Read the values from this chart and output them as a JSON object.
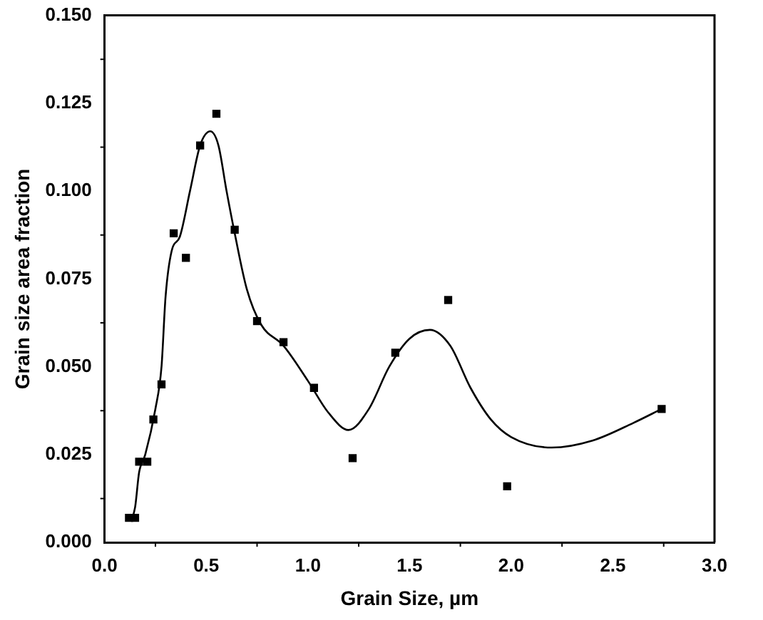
{
  "chart_data": {
    "type": "scatter",
    "xlabel": "Grain Size, µm",
    "ylabel": "Grain size area fraction",
    "xlim": [
      0,
      3
    ],
    "xticks": [
      {
        "value": 0,
        "label": "0.0"
      },
      0.5,
      {
        "value": 1,
        "label": "1.0"
      },
      1.5,
      {
        "value": 2,
        "label": "2.0"
      },
      2.5,
      {
        "value": 3,
        "label": "3.0"
      }
    ],
    "ylim": [
      0,
      0.15
    ],
    "yticks": [
      {
        "value": 0,
        "label": "0.000"
      },
      0.025,
      {
        "value": 0.05,
        "label": "0.050"
      },
      0.075,
      {
        "value": 0.1,
        "label": "0.100"
      },
      0.125,
      {
        "value": 0.15,
        "label": "0.150"
      }
    ],
    "series": [
      {
        "marker": "square",
        "color": "#000000",
        "x": [
          0.12,
          0.15,
          0.17,
          0.21,
          0.24,
          0.28,
          0.34,
          0.4,
          0.47,
          0.55,
          0.64,
          0.75,
          0.88,
          1.03,
          1.22,
          1.43,
          1.69,
          1.98,
          2.74
        ],
        "values": [
          0.007,
          0.007,
          0.023,
          0.023,
          0.035,
          0.045,
          0.088,
          0.081,
          0.113,
          0.122,
          0.089,
          0.063,
          0.057,
          0.044,
          0.024,
          0.054,
          0.069,
          0.016,
          0.038
        ]
      },
      {
        "type": "line",
        "marker": "none",
        "color": "#000000",
        "x": [
          0.13,
          0.15,
          0.17,
          0.2,
          0.25,
          0.28,
          0.3,
          0.33,
          0.37,
          0.42,
          0.47,
          0.52,
          0.56,
          0.6,
          0.64,
          0.7,
          0.77,
          0.88,
          1.0,
          1.1,
          1.2,
          1.3,
          1.4,
          1.5,
          1.6,
          1.7,
          1.8,
          1.9,
          2.0,
          2.2,
          2.4,
          2.6,
          2.74
        ],
        "values": [
          0.006,
          0.01,
          0.02,
          0.025,
          0.038,
          0.05,
          0.07,
          0.083,
          0.087,
          0.1,
          0.113,
          0.117,
          0.113,
          0.1,
          0.088,
          0.072,
          0.062,
          0.056,
          0.046,
          0.037,
          0.032,
          0.038,
          0.05,
          0.058,
          0.0605,
          0.056,
          0.044,
          0.035,
          0.03,
          0.027,
          0.029,
          0.034,
          0.038
        ]
      }
    ]
  }
}
